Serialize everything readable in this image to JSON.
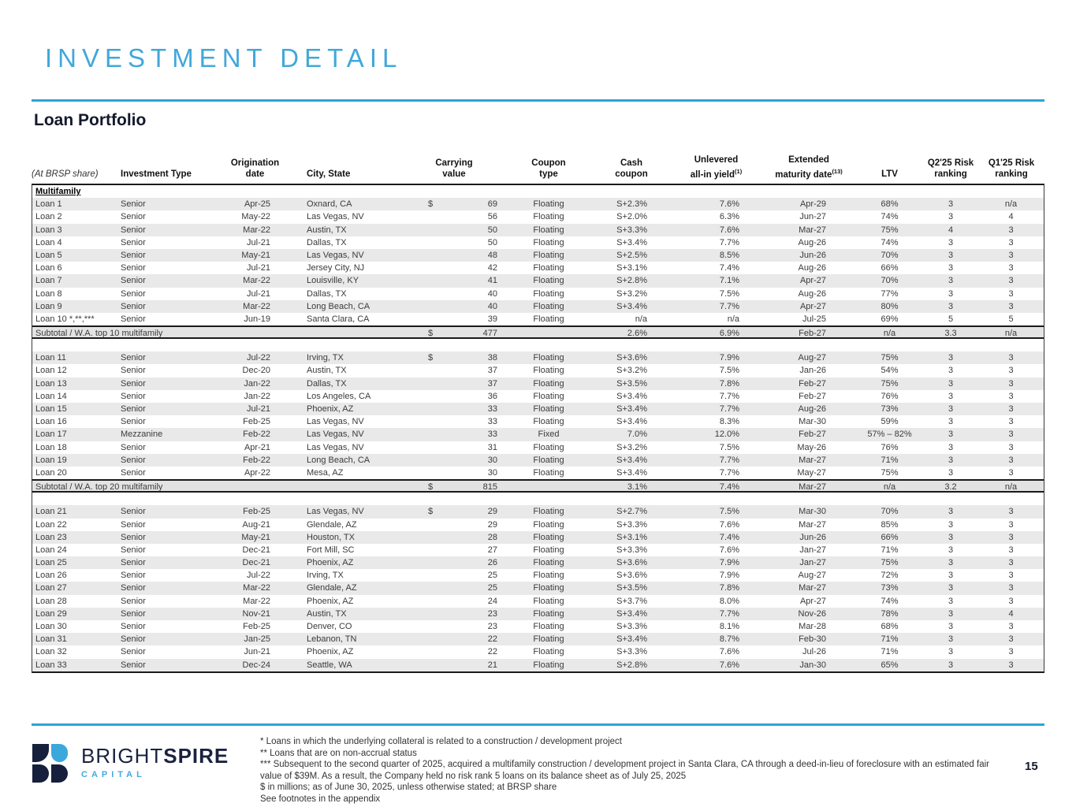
{
  "slide": {
    "title": "INVESTMENT DETAIL",
    "section_title": "Loan Portfolio",
    "page_number": "15"
  },
  "logo": {
    "brand_light": "BRIGHT",
    "brand_bold": "SPIRE",
    "subtitle": "CAPITAL"
  },
  "colors": {
    "accent_blue": "#2da3d8",
    "title_blue": "#41a8da",
    "navy": "#16203c",
    "stripe_gray": "#e9e9e9",
    "subtotal_gray": "#e3e3e3"
  },
  "footnotes": [
    "* Loans in which the underlying collateral is related to a construction / development project",
    "** Loans that are on non-accrual status",
    "*** Subsequent to the second quarter of 2025, acquired a multifamily construction / development project in Santa Clara, CA through a deed-in-lieu of foreclosure with an estimated fair value of $39M. As a result, the Company held no risk rank 5 loans on its balance sheet as of July 25, 2025",
    "$ in millions; as of June 30, 2025, unless otherwise stated; at BRSP share",
    "See footnotes in the appendix"
  ],
  "table": {
    "headers": [
      {
        "line1": "",
        "line2": "(At BRSP share)",
        "align": "left",
        "italic": true
      },
      {
        "line1": "",
        "line2": "Investment Type",
        "align": "left"
      },
      {
        "line1": "Origination",
        "line2": "date",
        "align": "center"
      },
      {
        "line1": "",
        "line2": "City, State",
        "align": "left",
        "pad_left": 18
      },
      {
        "line1": "Carrying",
        "line2": "value",
        "align": "center"
      },
      {
        "line1": "Coupon",
        "line2": "type",
        "align": "center"
      },
      {
        "line1": "Cash",
        "line2": "coupon",
        "align": "center"
      },
      {
        "line1": "Unlevered",
        "line2": "all-in yield",
        "sup": "(1)",
        "align": "center"
      },
      {
        "line1": "Extended",
        "line2": "maturity date",
        "sup": "(13)",
        "align": "center"
      },
      {
        "line1": "",
        "line2": "LTV",
        "align": "center"
      },
      {
        "line1": "Q2'25 Risk",
        "line2": "ranking",
        "align": "center"
      },
      {
        "line1": "Q1'25 Risk",
        "line2": "ranking",
        "align": "center"
      }
    ],
    "rows": [
      {
        "kind": "section",
        "label": "Multifamily"
      },
      {
        "kind": "loan",
        "name": "Loan 1",
        "type": "Senior",
        "date": "Apr-25",
        "city": "Oxnard, CA",
        "dollar": "$",
        "carry": "69",
        "ctype": "Floating",
        "coupon": "S+2.3%",
        "yield": "7.6%",
        "maturity": "Apr-29",
        "ltv": "68%",
        "q2": "3",
        "q1": "n/a"
      },
      {
        "kind": "loan",
        "name": "Loan 2",
        "type": "Senior",
        "date": "May-22",
        "city": "Las Vegas, NV",
        "dollar": "",
        "carry": "56",
        "ctype": "Floating",
        "coupon": "S+2.0%",
        "yield": "6.3%",
        "maturity": "Jun-27",
        "ltv": "74%",
        "q2": "3",
        "q1": "4"
      },
      {
        "kind": "loan",
        "name": "Loan 3",
        "type": "Senior",
        "date": "Mar-22",
        "city": "Austin, TX",
        "dollar": "",
        "carry": "50",
        "ctype": "Floating",
        "coupon": "S+3.3%",
        "yield": "7.6%",
        "maturity": "Mar-27",
        "ltv": "75%",
        "q2": "4",
        "q1": "3"
      },
      {
        "kind": "loan",
        "name": "Loan 4",
        "type": "Senior",
        "date": "Jul-21",
        "city": "Dallas, TX",
        "dollar": "",
        "carry": "50",
        "ctype": "Floating",
        "coupon": "S+3.4%",
        "yield": "7.7%",
        "maturity": "Aug-26",
        "ltv": "74%",
        "q2": "3",
        "q1": "3"
      },
      {
        "kind": "loan",
        "name": "Loan 5",
        "type": "Senior",
        "date": "May-21",
        "city": "Las Vegas, NV",
        "dollar": "",
        "carry": "48",
        "ctype": "Floating",
        "coupon": "S+2.5%",
        "yield": "8.5%",
        "maturity": "Jun-26",
        "ltv": "70%",
        "q2": "3",
        "q1": "3"
      },
      {
        "kind": "loan",
        "name": "Loan 6",
        "type": "Senior",
        "date": "Jul-21",
        "city": "Jersey City, NJ",
        "dollar": "",
        "carry": "42",
        "ctype": "Floating",
        "coupon": "S+3.1%",
        "yield": "7.4%",
        "maturity": "Aug-26",
        "ltv": "66%",
        "q2": "3",
        "q1": "3"
      },
      {
        "kind": "loan",
        "name": "Loan 7",
        "type": "Senior",
        "date": "Mar-22",
        "city": "Louisville, KY",
        "dollar": "",
        "carry": "41",
        "ctype": "Floating",
        "coupon": "S+2.8%",
        "yield": "7.1%",
        "maturity": "Apr-27",
        "ltv": "70%",
        "q2": "3",
        "q1": "3"
      },
      {
        "kind": "loan",
        "name": "Loan 8",
        "type": "Senior",
        "date": "Jul-21",
        "city": "Dallas, TX",
        "dollar": "",
        "carry": "40",
        "ctype": "Floating",
        "coupon": "S+3.2%",
        "yield": "7.5%",
        "maturity": "Aug-26",
        "ltv": "77%",
        "q2": "3",
        "q1": "3"
      },
      {
        "kind": "loan",
        "name": "Loan 9",
        "type": "Senior",
        "date": "Mar-22",
        "city": "Long Beach, CA",
        "dollar": "",
        "carry": "40",
        "ctype": "Floating",
        "coupon": "S+3.4%",
        "yield": "7.7%",
        "maturity": "Apr-27",
        "ltv": "80%",
        "q2": "3",
        "q1": "3"
      },
      {
        "kind": "loan",
        "name": "Loan 10 *,**,***",
        "type": "Senior",
        "date": "Jun-19",
        "city": "Santa Clara, CA",
        "dollar": "",
        "carry": "39",
        "ctype": "Floating",
        "coupon": "n/a",
        "yield": "n/a",
        "maturity": "Jul-25",
        "ltv": "69%",
        "q2": "5",
        "q1": "5"
      },
      {
        "kind": "subtotal",
        "label": "Subtotal / W.A. top 10 multifamily",
        "dollar": "$",
        "carry": "477",
        "coupon": "2.6%",
        "yield": "6.9%",
        "maturity": "Feb-27",
        "ltv": "n/a",
        "q2": "3.3",
        "q1": "n/a"
      },
      {
        "kind": "gap"
      },
      {
        "kind": "loan",
        "name": "Loan 11",
        "type": "Senior",
        "date": "Jul-22",
        "city": "Irving, TX",
        "dollar": "$",
        "carry": "38",
        "ctype": "Floating",
        "coupon": "S+3.6%",
        "yield": "7.9%",
        "maturity": "Aug-27",
        "ltv": "75%",
        "q2": "3",
        "q1": "3"
      },
      {
        "kind": "loan",
        "name": "Loan 12",
        "type": "Senior",
        "date": "Dec-20",
        "city": "Austin, TX",
        "dollar": "",
        "carry": "37",
        "ctype": "Floating",
        "coupon": "S+3.2%",
        "yield": "7.5%",
        "maturity": "Jan-26",
        "ltv": "54%",
        "q2": "3",
        "q1": "3"
      },
      {
        "kind": "loan",
        "name": "Loan 13",
        "type": "Senior",
        "date": "Jan-22",
        "city": "Dallas, TX",
        "dollar": "",
        "carry": "37",
        "ctype": "Floating",
        "coupon": "S+3.5%",
        "yield": "7.8%",
        "maturity": "Feb-27",
        "ltv": "75%",
        "q2": "3",
        "q1": "3"
      },
      {
        "kind": "loan",
        "name": "Loan 14",
        "type": "Senior",
        "date": "Jan-22",
        "city": "Los Angeles, CA",
        "dollar": "",
        "carry": "36",
        "ctype": "Floating",
        "coupon": "S+3.4%",
        "yield": "7.7%",
        "maturity": "Feb-27",
        "ltv": "76%",
        "q2": "3",
        "q1": "3"
      },
      {
        "kind": "loan",
        "name": "Loan 15",
        "type": "Senior",
        "date": "Jul-21",
        "city": "Phoenix, AZ",
        "dollar": "",
        "carry": "33",
        "ctype": "Floating",
        "coupon": "S+3.4%",
        "yield": "7.7%",
        "maturity": "Aug-26",
        "ltv": "73%",
        "q2": "3",
        "q1": "3"
      },
      {
        "kind": "loan",
        "name": "Loan 16",
        "type": "Senior",
        "date": "Feb-25",
        "city": "Las Vegas, NV",
        "dollar": "",
        "carry": "33",
        "ctype": "Floating",
        "coupon": "S+3.4%",
        "yield": "8.3%",
        "maturity": "Mar-30",
        "ltv": "59%",
        "q2": "3",
        "q1": "3"
      },
      {
        "kind": "loan",
        "name": "Loan 17",
        "type": "Mezzanine",
        "date": "Feb-22",
        "city": "Las Vegas, NV",
        "dollar": "",
        "carry": "33",
        "ctype": "Fixed",
        "coupon": "7.0%",
        "yield": "12.0%",
        "maturity": "Feb-27",
        "ltv": "57% – 82%",
        "q2": "3",
        "q1": "3"
      },
      {
        "kind": "loan",
        "name": "Loan 18",
        "type": "Senior",
        "date": "Apr-21",
        "city": "Las Vegas, NV",
        "dollar": "",
        "carry": "31",
        "ctype": "Floating",
        "coupon": "S+3.2%",
        "yield": "7.5%",
        "maturity": "May-26",
        "ltv": "76%",
        "q2": "3",
        "q1": "3"
      },
      {
        "kind": "loan",
        "name": "Loan 19",
        "type": "Senior",
        "date": "Feb-22",
        "city": "Long Beach, CA",
        "dollar": "",
        "carry": "30",
        "ctype": "Floating",
        "coupon": "S+3.4%",
        "yield": "7.7%",
        "maturity": "Mar-27",
        "ltv": "71%",
        "q2": "3",
        "q1": "3"
      },
      {
        "kind": "loan",
        "name": "Loan 20",
        "type": "Senior",
        "date": "Apr-22",
        "city": "Mesa, AZ",
        "dollar": "",
        "carry": "30",
        "ctype": "Floating",
        "coupon": "S+3.4%",
        "yield": "7.7%",
        "maturity": "May-27",
        "ltv": "75%",
        "q2": "3",
        "q1": "3"
      },
      {
        "kind": "subtotal",
        "label": "Subtotal / W.A. top 20 multifamily",
        "dollar": "$",
        "carry": "815",
        "coupon": "3.1%",
        "yield": "7.4%",
        "maturity": "Mar-27",
        "ltv": "n/a",
        "q2": "3.2",
        "q1": "n/a"
      },
      {
        "kind": "gap"
      },
      {
        "kind": "loan",
        "name": "Loan 21",
        "type": "Senior",
        "date": "Feb-25",
        "city": "Las Vegas, NV",
        "dollar": "$",
        "carry": "29",
        "ctype": "Floating",
        "coupon": "S+2.7%",
        "yield": "7.5%",
        "maturity": "Mar-30",
        "ltv": "70%",
        "q2": "3",
        "q1": "3"
      },
      {
        "kind": "loan",
        "name": "Loan 22",
        "type": "Senior",
        "date": "Aug-21",
        "city": "Glendale, AZ",
        "dollar": "",
        "carry": "29",
        "ctype": "Floating",
        "coupon": "S+3.3%",
        "yield": "7.6%",
        "maturity": "Mar-27",
        "ltv": "85%",
        "q2": "3",
        "q1": "3"
      },
      {
        "kind": "loan",
        "name": "Loan 23",
        "type": "Senior",
        "date": "May-21",
        "city": "Houston, TX",
        "dollar": "",
        "carry": "28",
        "ctype": "Floating",
        "coupon": "S+3.1%",
        "yield": "7.4%",
        "maturity": "Jun-26",
        "ltv": "66%",
        "q2": "3",
        "q1": "3"
      },
      {
        "kind": "loan",
        "name": "Loan 24",
        "type": "Senior",
        "date": "Dec-21",
        "city": "Fort Mill, SC",
        "dollar": "",
        "carry": "27",
        "ctype": "Floating",
        "coupon": "S+3.3%",
        "yield": "7.6%",
        "maturity": "Jan-27",
        "ltv": "71%",
        "q2": "3",
        "q1": "3"
      },
      {
        "kind": "loan",
        "name": "Loan 25",
        "type": "Senior",
        "date": "Dec-21",
        "city": "Phoenix, AZ",
        "dollar": "",
        "carry": "26",
        "ctype": "Floating",
        "coupon": "S+3.6%",
        "yield": "7.9%",
        "maturity": "Jan-27",
        "ltv": "75%",
        "q2": "3",
        "q1": "3"
      },
      {
        "kind": "loan",
        "name": "Loan 26",
        "type": "Senior",
        "date": "Jul-22",
        "city": "Irving, TX",
        "dollar": "",
        "carry": "25",
        "ctype": "Floating",
        "coupon": "S+3.6%",
        "yield": "7.9%",
        "maturity": "Aug-27",
        "ltv": "72%",
        "q2": "3",
        "q1": "3"
      },
      {
        "kind": "loan",
        "name": "Loan 27",
        "type": "Senior",
        "date": "Mar-22",
        "city": "Glendale, AZ",
        "dollar": "",
        "carry": "25",
        "ctype": "Floating",
        "coupon": "S+3.5%",
        "yield": "7.8%",
        "maturity": "Mar-27",
        "ltv": "73%",
        "q2": "3",
        "q1": "3"
      },
      {
        "kind": "loan",
        "name": "Loan 28",
        "type": "Senior",
        "date": "Mar-22",
        "city": "Phoenix, AZ",
        "dollar": "",
        "carry": "24",
        "ctype": "Floating",
        "coupon": "S+3.7%",
        "yield": "8.0%",
        "maturity": "Apr-27",
        "ltv": "74%",
        "q2": "3",
        "q1": "3"
      },
      {
        "kind": "loan",
        "name": "Loan 29",
        "type": "Senior",
        "date": "Nov-21",
        "city": "Austin, TX",
        "dollar": "",
        "carry": "23",
        "ctype": "Floating",
        "coupon": "S+3.4%",
        "yield": "7.7%",
        "maturity": "Nov-26",
        "ltv": "78%",
        "q2": "3",
        "q1": "4"
      },
      {
        "kind": "loan",
        "name": "Loan 30",
        "type": "Senior",
        "date": "Feb-25",
        "city": "Denver, CO",
        "dollar": "",
        "carry": "23",
        "ctype": "Floating",
        "coupon": "S+3.3%",
        "yield": "8.1%",
        "maturity": "Mar-28",
        "ltv": "68%",
        "q2": "3",
        "q1": "3"
      },
      {
        "kind": "loan",
        "name": "Loan 31",
        "type": "Senior",
        "date": "Jan-25",
        "city": "Lebanon, TN",
        "dollar": "",
        "carry": "22",
        "ctype": "Floating",
        "coupon": "S+3.4%",
        "yield": "8.7%",
        "maturity": "Feb-30",
        "ltv": "71%",
        "q2": "3",
        "q1": "3"
      },
      {
        "kind": "loan",
        "name": "Loan 32",
        "type": "Senior",
        "date": "Jun-21",
        "city": "Phoenix, AZ",
        "dollar": "",
        "carry": "22",
        "ctype": "Floating",
        "coupon": "S+3.3%",
        "yield": "7.6%",
        "maturity": "Jul-26",
        "ltv": "71%",
        "q2": "3",
        "q1": "3"
      },
      {
        "kind": "loan",
        "name": "Loan 33",
        "type": "Senior",
        "date": "Dec-24",
        "city": "Seattle, WA",
        "dollar": "",
        "carry": "21",
        "ctype": "Floating",
        "coupon": "S+2.8%",
        "yield": "7.6%",
        "maturity": "Jan-30",
        "ltv": "65%",
        "q2": "3",
        "q1": "3"
      }
    ]
  }
}
